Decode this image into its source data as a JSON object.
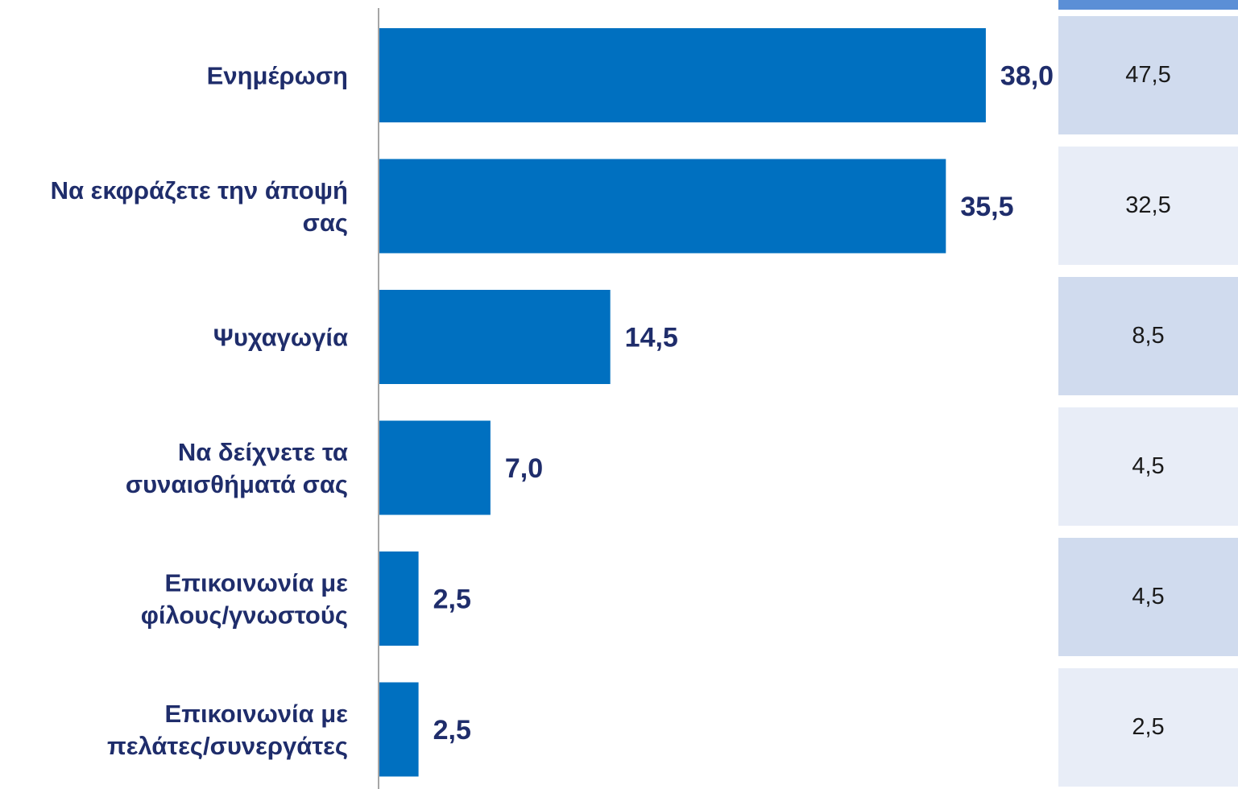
{
  "colors": {
    "bar": "#0070c0",
    "label": "#1f2d6b",
    "table_header": "#5b8fd6",
    "table_dark": "#d0dbee",
    "table_light": "#e8edf7"
  },
  "chart_data": {
    "type": "bar",
    "orientation": "horizontal",
    "categories": [
      [
        "Ενημέρωση"
      ],
      [
        "Να εκφράζετε την άποψή",
        "σας"
      ],
      [
        "Ψυχαγωγία"
      ],
      [
        "Να δείχνετε τα",
        "συναισθήματά σας"
      ],
      [
        "Επικοινωνία με",
        "φίλους/γνωστούς"
      ],
      [
        "Επικοινωνία με",
        "πελάτες/συνεργάτες"
      ]
    ],
    "values": [
      38.0,
      35.5,
      14.5,
      7.0,
      2.5,
      2.5
    ],
    "value_labels": [
      "38,0",
      "35,5",
      "14,5",
      "7,0",
      "2,5",
      "2,5"
    ],
    "xlim": [
      0,
      40
    ],
    "grid": false
  },
  "side_table": {
    "values": [
      "47,5",
      "32,5",
      "8,5",
      "4,5",
      "4,5",
      "2,5"
    ]
  }
}
